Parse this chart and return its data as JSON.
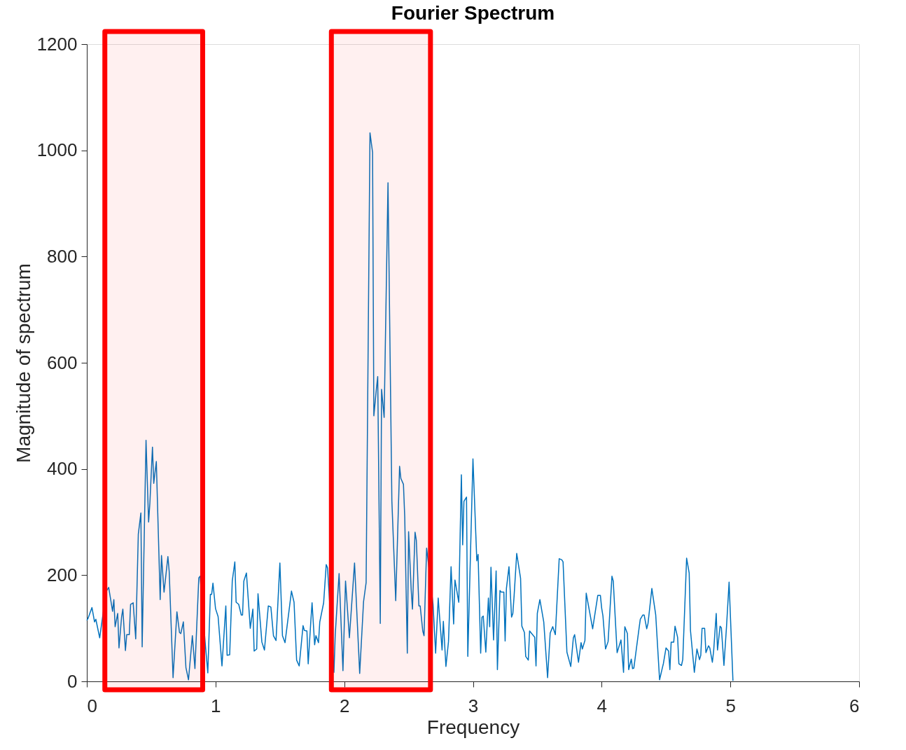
{
  "chart_data": {
    "type": "line",
    "title": "Fourier Spectrum",
    "xlabel": "Frequency",
    "ylabel": "Magnitude of spectrum",
    "x": [
      0,
      0.01,
      0.04,
      0.06,
      0.07,
      0.1,
      0.15,
      0.17,
      0.2,
      0.21,
      0.22,
      0.24,
      0.25,
      0.27,
      0.28,
      0.3,
      0.31,
      0.33,
      0.34,
      0.36,
      0.38,
      0.4,
      0.42,
      0.43,
      0.46,
      0.48,
      0.49,
      0.51,
      0.52,
      0.54,
      0.57,
      0.58,
      0.6,
      0.63,
      0.64,
      0.67,
      0.7,
      0.72,
      0.73,
      0.75,
      0.77,
      0.79,
      0.82,
      0.84,
      0.87,
      0.88,
      0.92,
      0.94,
      0.96,
      0.97,
      0.98,
      1.0,
      1.02,
      1.05,
      1.08,
      1.09,
      1.11,
      1.13,
      1.15,
      1.16,
      1.18,
      1.2,
      1.21,
      1.22,
      1.24,
      1.27,
      1.29,
      1.3,
      1.32,
      1.33,
      1.36,
      1.38,
      1.41,
      1.43,
      1.45,
      1.47,
      1.5,
      1.52,
      1.54,
      1.59,
      1.61,
      1.63,
      1.65,
      1.68,
      1.69,
      1.71,
      1.72,
      1.74,
      1.75,
      1.77,
      1.78,
      1.8,
      1.81,
      1.84,
      1.86,
      1.87,
      1.92,
      1.93,
      1.96,
      1.99,
      2.01,
      2.04,
      2.08,
      2.12,
      2.15,
      2.17,
      2.2,
      2.22,
      2.23,
      2.25,
      2.26,
      2.28,
      2.29,
      2.31,
      2.34,
      2.37,
      2.4,
      2.43,
      2.44,
      2.46,
      2.47,
      2.49,
      2.5,
      2.52,
      2.53,
      2.55,
      2.56,
      2.58,
      2.59,
      2.61,
      2.62,
      2.64,
      2.66,
      2.69,
      2.71,
      2.73,
      2.76,
      2.77,
      2.79,
      2.81,
      2.83,
      2.85,
      2.86,
      2.89,
      2.91,
      2.92,
      2.93,
      2.95,
      2.96,
      3.0,
      3.03,
      3.04,
      3.06,
      3.07,
      3.08,
      3.1,
      3.12,
      3.13,
      3.14,
      3.16,
      3.18,
      3.19,
      3.21,
      3.22,
      3.24,
      3.25,
      3.26,
      3.28,
      3.3,
      3.31,
      3.32,
      3.34,
      3.37,
      3.38,
      3.4,
      3.41,
      3.43,
      3.44,
      3.48,
      3.49,
      3.5,
      3.52,
      3.55,
      3.58,
      3.6,
      3.62,
      3.64,
      3.67,
      3.69,
      3.7,
      3.73,
      3.76,
      3.78,
      3.79,
      3.82,
      3.84,
      3.85,
      3.87,
      3.88,
      3.93,
      3.97,
      3.99,
      4.0,
      4.01,
      4.03,
      4.05,
      4.08,
      4.09,
      4.12,
      4.15,
      4.17,
      4.18,
      4.2,
      4.21,
      4.23,
      4.24,
      4.25,
      4.29,
      4.3,
      4.32,
      4.33,
      4.35,
      4.36,
      4.39,
      4.42,
      4.45,
      4.47,
      4.48,
      4.5,
      4.52,
      4.53,
      4.54,
      4.56,
      4.57,
      4.59,
      4.6,
      4.62,
      4.63,
      4.66,
      4.68,
      4.69,
      4.72,
      4.74,
      4.76,
      4.77,
      4.78,
      4.8,
      4.81,
      4.83,
      4.84,
      4.86,
      4.87,
      4.89,
      4.9,
      4.92,
      4.93,
      4.95,
      4.97,
      4.99,
      5.02
    ],
    "series": [
      {
        "color": "#0072bd",
        "values": [
          115,
          119,
          139,
          112,
          117,
          82,
          169,
          177,
          132,
          154,
          103,
          128,
          63,
          121,
          136,
          58,
          88,
          88,
          145,
          148,
          80,
          277,
          317,
          65,
          454,
          300,
          336,
          441,
          373,
          414,
          154,
          237,
          168,
          235,
          207,
          7,
          131,
          92,
          90,
          112,
          26,
          3,
          86,
          24,
          195,
          198,
          72,
          16,
          164,
          164,
          185,
          137,
          122,
          29,
          142,
          49,
          50,
          189,
          225,
          149,
          145,
          125,
          125,
          189,
          204,
          100,
          136,
          57,
          61,
          165,
          74,
          59,
          142,
          140,
          86,
          77,
          223,
          86,
          73,
          170,
          149,
          40,
          29,
          105,
          96,
          95,
          33,
          112,
          148,
          69,
          86,
          73,
          112,
          148,
          220,
          214,
          17,
          88,
          203,
          20,
          189,
          82,
          223,
          15,
          150,
          186,
          1033,
          996,
          500,
          551,
          574,
          109,
          550,
          497,
          939,
          340,
          152,
          405,
          382,
          371,
          310,
          53,
          282,
          173,
          136,
          281,
          266,
          142,
          142,
          95,
          86,
          251,
          210,
          145,
          53,
          157,
          59,
          113,
          28,
          75,
          216,
          108,
          191,
          149,
          389,
          257,
          339,
          347,
          47,
          419,
          227,
          239,
          53,
          121,
          123,
          55,
          157,
          103,
          215,
          78,
          208,
          22,
          171,
          168,
          168,
          76,
          175,
          216,
          121,
          128,
          162,
          241,
          194,
          104,
          92,
          47,
          40,
          95,
          83,
          29,
          128,
          154,
          112,
          7,
          91,
          103,
          88,
          231,
          229,
          225,
          55,
          28,
          82,
          88,
          36,
          73,
          61,
          77,
          166,
          99,
          162,
          162,
          138,
          123,
          61,
          75,
          198,
          189,
          54,
          78,
          17,
          103,
          90,
          22,
          42,
          24,
          25,
          99,
          117,
          125,
          125,
          99,
          109,
          175,
          125,
          3,
          24,
          34,
          63,
          57,
          22,
          74,
          74,
          104,
          83,
          33,
          30,
          41,
          232,
          204,
          96,
          17,
          61,
          41,
          49,
          100,
          100,
          54,
          67,
          63,
          36,
          57,
          128,
          59,
          104,
          101,
          30,
          103,
          187,
          1
        ]
      }
    ],
    "xlim": [
      0,
      6
    ],
    "xticks": [
      0,
      1,
      2,
      3,
      4,
      5,
      6
    ],
    "ylim": [
      0,
      1200
    ],
    "yticks": [
      0,
      200,
      400,
      600,
      800,
      1000,
      1200
    ],
    "bands": [
      {
        "axis": "x",
        "from": 0.14,
        "to": 0.9,
        "color": "#ff0000"
      },
      {
        "axis": "x",
        "from": 1.9,
        "to": 2.67,
        "color": "#ff0000"
      }
    ],
    "grid": false
  }
}
